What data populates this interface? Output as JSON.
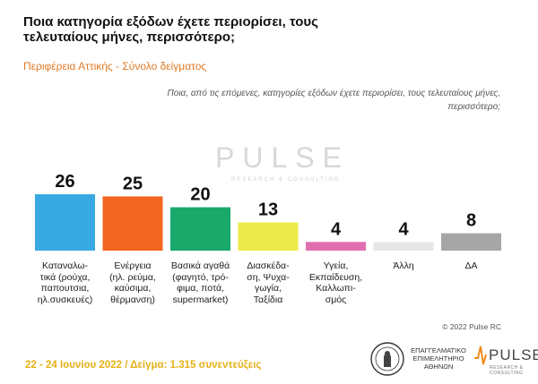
{
  "slide": {
    "title": "Ποια κατηγορία εξόδων έχετε περιορίσει, τους τελευταίους μήνες, περισσότερο;",
    "subtitle": "Περιφέρεια Αττικής - Σύνολο δείγματος",
    "question": "Ποια, από τις επόμενες, κατηγορίες εξόδων έχετε περιορίσει, τους τελευταίους μήνες, περισσότερο;",
    "watermark": "PULSE",
    "watermark_sub": "RESEARCH & CONSULTING",
    "copyright": "© 2022 Pulse RC",
    "footer": "22 - 24 Ιουνίου  2022  /  Δείγμα:  1.315 συνεντεύξεις"
  },
  "logos": {
    "chamber_line1": "ΕΠΑΓΓΕΛΜΑΤΙΚΟ",
    "chamber_line2": "ΕΠΙΜΕΛΗΤΗΡΙΟ",
    "chamber_line3": "ΑΘΗΝΩΝ",
    "pulse": "PULSE",
    "pulse_sub": "RESEARCH & CONSULTING"
  },
  "chart_data": {
    "type": "bar",
    "categories": [
      "Καταναλω-\nτικά (ρούχα,\nπαπουτσια,\nηλ.συσκευές)",
      "Ενέργεια\n(ηλ. ρεύμα,\nκαύσιμα,\nθέρμανση)",
      "Βασικά αγαθά\n(φαγητό, τρό-\nφιμα, ποτά,\nsupermarket)",
      "Διασκέδα-\nση, Ψυχα-\nγωγία,\nΤαξίδια",
      "Υγεία,\nΕκπαίδευση,\nΚαλλωπι-\nσμός",
      "Άλλη",
      "ΔΑ"
    ],
    "values": [
      26,
      25,
      20,
      13,
      4,
      4,
      8
    ],
    "colors": [
      "#39a9e3",
      "#f26522",
      "#1aa86b",
      "#ecea4a",
      "#e16fb0",
      "#e6e6e6",
      "#a6a6a6"
    ],
    "ylim": [
      0,
      26
    ],
    "grid": false,
    "legend": "none"
  }
}
